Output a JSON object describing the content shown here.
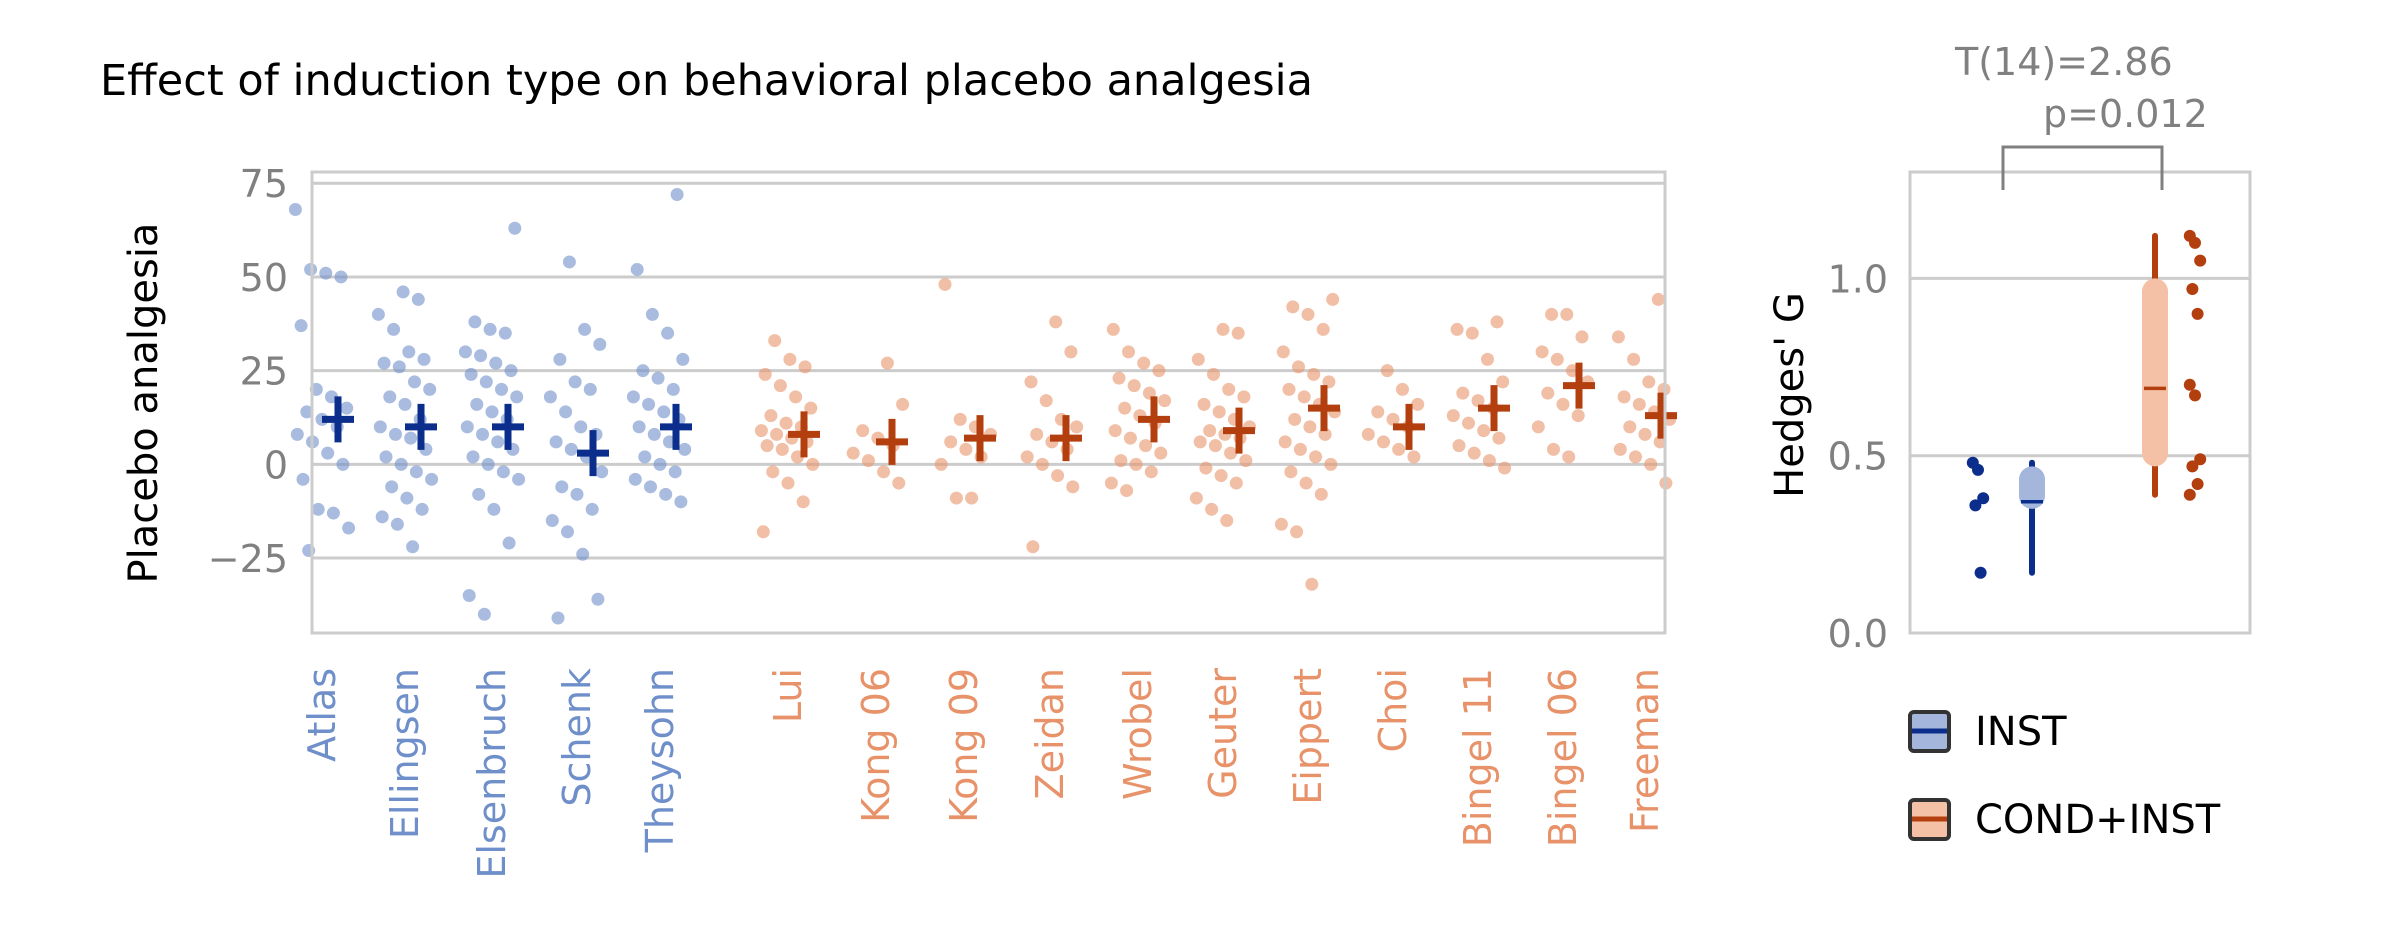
{
  "title": "Effect of induction type on behavioral placebo analgesia",
  "colors": {
    "inst_dark": "#0b2d8c",
    "inst_light": "#6f8fca",
    "cond_dark": "#b33e0e",
    "cond_light": "#e8926a",
    "inst_box": "#a5b6dc",
    "cond_box": "#f5c1a6",
    "grid": "#cccccc",
    "axis_text": "#808080"
  },
  "chart_data": [
    {
      "type": "scatter",
      "ylabel": "Placebo analgesia",
      "ylim": [
        -45,
        78
      ],
      "yticks": [
        -25,
        0,
        25,
        50,
        75
      ],
      "ytick_labels": [
        "−25",
        "0",
        "25",
        "50",
        "75"
      ],
      "grid": true,
      "studies": [
        {
          "name": "Atlas",
          "group": "INST",
          "mean": 12,
          "points": [
            68,
            52,
            51,
            50,
            37,
            20,
            18,
            15,
            14,
            12,
            10,
            8,
            6,
            3,
            0,
            -4,
            -12,
            -13,
            -17,
            -23
          ]
        },
        {
          "name": "Ellingsen",
          "group": "INST",
          "mean": 10,
          "points": [
            46,
            44,
            40,
            36,
            30,
            28,
            27,
            26,
            22,
            20,
            18,
            16,
            12,
            10,
            8,
            7,
            4,
            2,
            0,
            -2,
            -4,
            -6,
            -9,
            -12,
            -14,
            -16,
            -22
          ]
        },
        {
          "name": "Elsenbruch",
          "group": "INST",
          "mean": 10,
          "points": [
            63,
            38,
            36,
            35,
            30,
            29,
            27,
            25,
            24,
            22,
            20,
            18,
            16,
            14,
            12,
            10,
            8,
            6,
            4,
            2,
            0,
            -2,
            -4,
            -8,
            -12,
            -21,
            -35,
            -40
          ]
        },
        {
          "name": "Schenk",
          "group": "INST",
          "mean": 3,
          "points": [
            54,
            36,
            32,
            28,
            22,
            20,
            18,
            14,
            10,
            8,
            6,
            4,
            2,
            -2,
            -6,
            -8,
            -12,
            -15,
            -18,
            -24,
            -36,
            -41
          ]
        },
        {
          "name": "Theysohn",
          "group": "INST",
          "mean": 10,
          "points": [
            72,
            52,
            40,
            35,
            28,
            25,
            23,
            20,
            18,
            16,
            14,
            12,
            10,
            8,
            6,
            4,
            2,
            0,
            -2,
            -4,
            -6,
            -8,
            -10
          ]
        },
        {
          "name": "Lui",
          "group": "COND+INST",
          "mean": 8,
          "points": [
            33,
            28,
            26,
            24,
            21,
            18,
            15,
            13,
            11,
            10,
            9,
            8,
            7,
            6,
            5,
            4,
            2,
            0,
            -2,
            -5,
            -10,
            -18
          ]
        },
        {
          "name": "Kong 06",
          "group": "COND+INST",
          "mean": 6,
          "points": [
            27,
            16,
            9,
            7,
            5,
            3,
            1,
            -2,
            -5
          ]
        },
        {
          "name": "Kong 09",
          "group": "COND+INST",
          "mean": 7,
          "points": [
            48,
            12,
            10,
            8,
            6,
            4,
            2,
            0,
            -9,
            -9
          ]
        },
        {
          "name": "Zeidan",
          "group": "COND+INST",
          "mean": 7,
          "points": [
            38,
            30,
            22,
            17,
            12,
            10,
            8,
            6,
            4,
            2,
            0,
            -3,
            -6,
            -22
          ]
        },
        {
          "name": "Wrobel",
          "group": "COND+INST",
          "mean": 12,
          "points": [
            36,
            30,
            27,
            25,
            23,
            21,
            19,
            17,
            15,
            13,
            11,
            9,
            7,
            5,
            3,
            1,
            0,
            -2,
            -5,
            -7
          ]
        },
        {
          "name": "Geuter",
          "group": "COND+INST",
          "mean": 9,
          "points": [
            36,
            35,
            28,
            24,
            20,
            18,
            16,
            14,
            12,
            10,
            9,
            8,
            7,
            6,
            5,
            3,
            1,
            -1,
            -3,
            -5,
            -9,
            -12,
            -15
          ]
        },
        {
          "name": "Eippert",
          "group": "COND+INST",
          "mean": 15,
          "points": [
            44,
            42,
            40,
            36,
            30,
            26,
            24,
            22,
            20,
            18,
            16,
            14,
            12,
            10,
            8,
            6,
            4,
            2,
            0,
            -2,
            -5,
            -8,
            -16,
            -18,
            -32
          ]
        },
        {
          "name": "Choi",
          "group": "COND+INST",
          "mean": 10,
          "points": [
            25,
            20,
            16,
            14,
            12,
            10,
            8,
            6,
            4,
            2
          ]
        },
        {
          "name": "Bingel 11",
          "group": "COND+INST",
          "mean": 15,
          "points": [
            38,
            36,
            35,
            28,
            22,
            19,
            17,
            15,
            13,
            11,
            9,
            7,
            5,
            3,
            1,
            -1
          ]
        },
        {
          "name": "Bingel 06",
          "group": "COND+INST",
          "mean": 21,
          "points": [
            40,
            40,
            34,
            30,
            28,
            25,
            22,
            19,
            16,
            13,
            10,
            4,
            2
          ]
        },
        {
          "name": "Freeman",
          "group": "COND+INST",
          "mean": 13,
          "points": [
            44,
            34,
            28,
            22,
            20,
            18,
            16,
            14,
            12,
            10,
            8,
            6,
            4,
            2,
            0,
            -5
          ]
        }
      ]
    },
    {
      "type": "box",
      "ylabel": "Hedges' G",
      "ylim": [
        0,
        1.3
      ],
      "yticks": [
        0,
        0.5,
        1
      ],
      "ytick_labels": [
        "0.0",
        "0.5",
        "1.0"
      ],
      "grid": true,
      "groups": [
        {
          "name": "INST",
          "points": [
            0.48,
            0.46,
            0.38,
            0.36,
            0.17
          ],
          "q1": 0.35,
          "q3": 0.47,
          "median": 0.37,
          "whisker_low": 0.17,
          "whisker_high": 0.48
        },
        {
          "name": "COND+INST",
          "points": [
            1.12,
            1.1,
            1.05,
            0.97,
            0.9,
            0.7,
            0.67,
            0.49,
            0.47,
            0.42,
            0.39
          ],
          "q1": 0.47,
          "q3": 1.0,
          "median": 0.69,
          "whisker_low": 0.39,
          "whisker_high": 1.12
        }
      ],
      "annotation": {
        "line1": "T(14)=2.86",
        "line2": "p=0.012"
      }
    }
  ],
  "legend": [
    "INST",
    "COND+INST"
  ]
}
